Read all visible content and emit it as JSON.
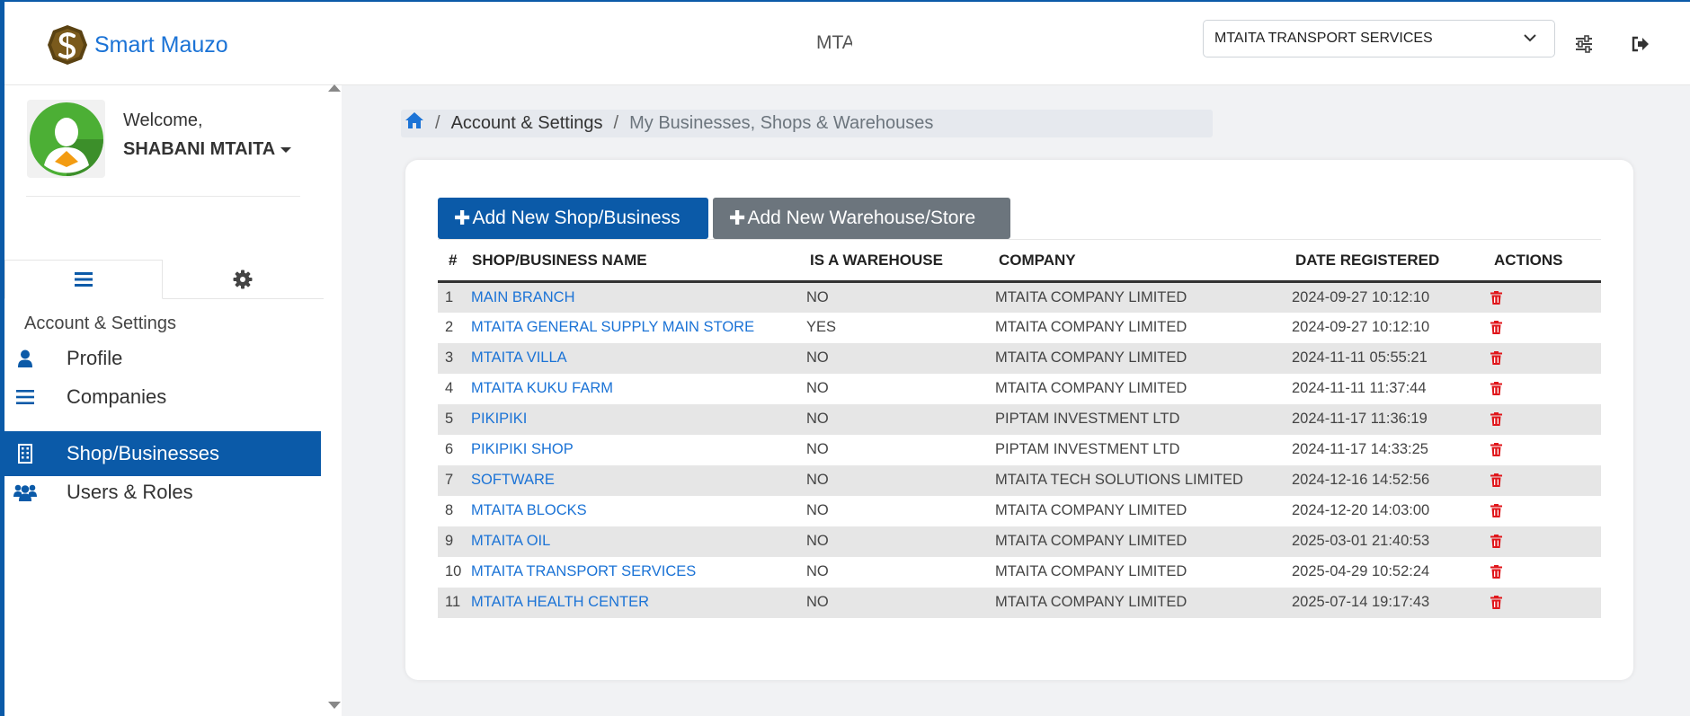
{
  "app": {
    "brand_name": "Smart Mauzo",
    "header_center_text": "MTA"
  },
  "header": {
    "business_select_value": "MTAITA TRANSPORT SERVICES",
    "icons": [
      "sliders-icon",
      "logout-icon"
    ]
  },
  "sidebar": {
    "welcome": "Welcome,",
    "user_name": "SHABANI MTAITA",
    "tabs": [
      "menu-icon",
      "gear-icon"
    ],
    "section_title": "Account & Settings",
    "items": [
      {
        "label": "Profile",
        "icon": "user-icon"
      },
      {
        "label": "Companies",
        "icon": "list-icon"
      },
      {
        "label": "Shop/Businesses",
        "icon": "building-icon",
        "active": true
      },
      {
        "label": "Users & Roles",
        "icon": "users-icon"
      }
    ]
  },
  "breadcrumb": {
    "level1": "Account & Settings",
    "level2": "My Businesses, Shops & Warehouses",
    "separator": "/"
  },
  "actions": {
    "add_shop": "Add New Shop/Business",
    "add_warehouse": "Add New Warehouse/Store",
    "plus": "✚"
  },
  "table": {
    "headers": [
      "#",
      "SHOP/BUSINESS NAME",
      "IS A WAREHOUSE",
      "COMPANY",
      "DATE REGISTERED",
      "ACTIONS"
    ],
    "rows": [
      {
        "no": "1",
        "name": "MAIN BRANCH",
        "warehouse": "NO",
        "company": "MTAITA COMPANY LIMITED",
        "date": "2024-09-27 10:12:10"
      },
      {
        "no": "2",
        "name": "MTAITA GENERAL SUPPLY MAIN STORE",
        "warehouse": "YES",
        "company": "MTAITA COMPANY LIMITED",
        "date": "2024-09-27 10:12:10"
      },
      {
        "no": "3",
        "name": "MTAITA VILLA",
        "warehouse": "NO",
        "company": "MTAITA COMPANY LIMITED",
        "date": "2024-11-11 05:55:21"
      },
      {
        "no": "4",
        "name": "MTAITA KUKU FARM",
        "warehouse": "NO",
        "company": "MTAITA COMPANY LIMITED",
        "date": "2024-11-11 11:37:44"
      },
      {
        "no": "5",
        "name": "PIKIPIKI",
        "warehouse": "NO",
        "company": "PIPTAM INVESTMENT LTD",
        "date": "2024-11-17 11:36:19"
      },
      {
        "no": "6",
        "name": "PIKIPIKI SHOP",
        "warehouse": "NO",
        "company": "PIPTAM INVESTMENT LTD",
        "date": "2024-11-17 14:33:25"
      },
      {
        "no": "7",
        "name": "SOFTWARE",
        "warehouse": "NO",
        "company": "MTAITA TECH SOLUTIONS LIMITED",
        "date": "2024-12-16 14:52:56"
      },
      {
        "no": "8",
        "name": "MTAITA BLOCKS",
        "warehouse": "NO",
        "company": "MTAITA COMPANY LIMITED",
        "date": "2024-12-20 14:03:00"
      },
      {
        "no": "9",
        "name": "MTAITA OIL",
        "warehouse": "NO",
        "company": "MTAITA COMPANY LIMITED",
        "date": "2025-03-01 21:40:53"
      },
      {
        "no": "10",
        "name": "MTAITA TRANSPORT SERVICES",
        "warehouse": "NO",
        "company": "MTAITA COMPANY LIMITED",
        "date": "2025-04-29 10:52:24"
      },
      {
        "no": "11",
        "name": "MTAITA HEALTH CENTER",
        "warehouse": "NO",
        "company": "MTAITA COMPANY LIMITED",
        "date": "2025-07-14 19:17:43"
      }
    ],
    "row_action_icon": "trash-icon"
  },
  "colors": {
    "primary": "#0b5aa8",
    "link": "#1b73d6",
    "secondary": "#6c757d",
    "danger": "#e0161b",
    "row_stripe": "#e6e6e6"
  }
}
